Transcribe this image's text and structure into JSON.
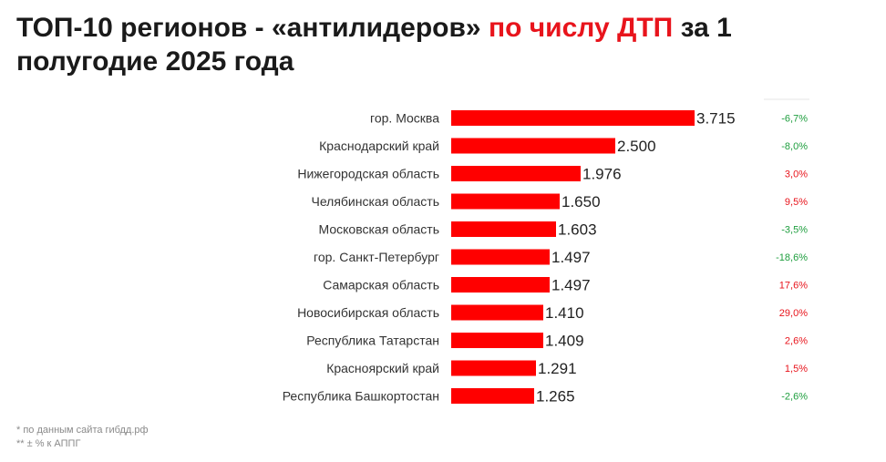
{
  "header": {
    "title_part1": "ТОП-10 регионов - «антилидеров» ",
    "title_accent": "по числу ДТП",
    "title_part2": " за 1 полугодие 2025 года"
  },
  "colors": {
    "bar": "#ff0000",
    "accent": "#e8141c",
    "change_negative": "#1e9e3e",
    "change_positive": "#e8141c"
  },
  "chart_data": {
    "type": "bar",
    "orientation": "horizontal",
    "categories": [
      "гор. Москва",
      "Краснодарский край",
      "Нижегородская область",
      "Челябинская область",
      "Московская область",
      "гор. Санкт-Петербург",
      "Самарская область",
      "Новосибирская область",
      "Республика Татарстан",
      "Красноярский край",
      "Республика Башкортостан"
    ],
    "values": [
      3715,
      2500,
      1976,
      1650,
      1603,
      1497,
      1497,
      1410,
      1409,
      1291,
      1265
    ],
    "value_labels": [
      "3.715",
      "2.500",
      "1.976",
      "1.650",
      "1.603",
      "1.497",
      "1.497",
      "1.410",
      "1.409",
      "1.291",
      "1.265"
    ],
    "change_labels": [
      "-6,7%",
      "-8,0%",
      "3,0%",
      "9,5%",
      "-3,5%",
      "-18,6%",
      "17,6%",
      "29,0%",
      "2,6%",
      "1,5%",
      "-2,6%"
    ],
    "change_values": [
      -6.7,
      -8.0,
      3.0,
      9.5,
      -3.5,
      -18.6,
      17.6,
      29.0,
      2.6,
      1.5,
      -2.6
    ],
    "xlim": [
      0,
      3715
    ],
    "grid": false,
    "legend": "none"
  },
  "footnotes": [
    "* по данным сайта гибдд.рф",
    "** ± % к АППГ"
  ]
}
